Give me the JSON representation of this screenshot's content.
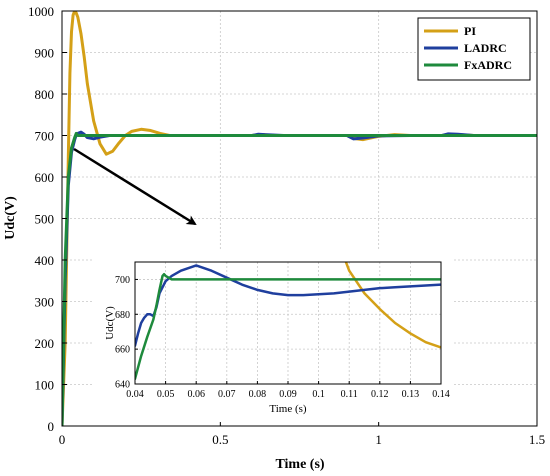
{
  "chart_data": [
    {
      "type": "line",
      "xlabel": "Time (s)",
      "ylabel": "Udc(V)",
      "xlim": [
        0,
        1.5
      ],
      "ylim": [
        0,
        1000
      ],
      "xticks": [
        0,
        0.5,
        1,
        1.5
      ],
      "xtick_labels": [
        "0",
        "0.5",
        "1",
        "1.5"
      ],
      "yticks": [
        0,
        100,
        200,
        300,
        400,
        500,
        600,
        700,
        800,
        900,
        1000
      ],
      "ytick_labels": [
        "0",
        "100",
        "200",
        "300",
        "400",
        "500",
        "600",
        "700",
        "800",
        "900",
        "1000"
      ],
      "grid": true,
      "legend_position": "top-right",
      "series": [
        {
          "name": "PI",
          "color": "#D4A017",
          "x": [
            0,
            0.01,
            0.02,
            0.025,
            0.03,
            0.035,
            0.04,
            0.045,
            0.05,
            0.06,
            0.07,
            0.08,
            0.1,
            0.12,
            0.14,
            0.16,
            0.18,
            0.2,
            0.22,
            0.25,
            0.28,
            0.31,
            0.34,
            0.38,
            0.42,
            0.5,
            0.6,
            0.62,
            0.64,
            0.66,
            0.7,
            0.85,
            0.9,
            0.92,
            0.95,
            1.0,
            1.05,
            1.1,
            1.2,
            1.22,
            1.25,
            1.3,
            1.4,
            1.5
          ],
          "y": [
            0,
            200,
            650,
            850,
            950,
            990,
            1000,
            995,
            985,
            945,
            890,
            825,
            735,
            680,
            655,
            662,
            682,
            700,
            710,
            715,
            712,
            705,
            700,
            700,
            700,
            700,
            700,
            702,
            702,
            700,
            700,
            700,
            700,
            693,
            690,
            698,
            702,
            700,
            700,
            702,
            702,
            700,
            700,
            700
          ]
        },
        {
          "name": "LADRC",
          "color": "#1F3F9E",
          "x": [
            0,
            0.01,
            0.02,
            0.03,
            0.04,
            0.045,
            0.05,
            0.06,
            0.07,
            0.08,
            0.1,
            0.12,
            0.15,
            0.2,
            0.3,
            0.5,
            0.6,
            0.62,
            0.64,
            0.7,
            0.9,
            0.92,
            0.95,
            1.0,
            1.1,
            1.2,
            1.22,
            1.25,
            1.3,
            1.5
          ],
          "y": [
            0,
            350,
            580,
            660,
            690,
            702,
            705,
            708,
            703,
            695,
            692,
            696,
            700,
            700,
            700,
            700,
            700,
            703,
            702,
            700,
            700,
            692,
            694,
            699,
            700,
            700,
            704,
            703,
            700,
            700
          ]
        },
        {
          "name": "FxADRC",
          "color": "#1E8A3C",
          "x": [
            0,
            0.01,
            0.02,
            0.03,
            0.04,
            0.045,
            0.05,
            0.06,
            0.08,
            0.1,
            0.2,
            0.5,
            1.0,
            1.5
          ],
          "y": [
            0,
            400,
            600,
            670,
            695,
            705,
            700,
            700,
            700,
            700,
            700,
            700,
            700,
            700
          ]
        }
      ]
    },
    {
      "type": "line",
      "xlabel": "Time (s)",
      "ylabel": "Udc(V)",
      "xlim": [
        0.04,
        0.14
      ],
      "ylim": [
        640,
        710
      ],
      "xticks": [
        0.04,
        0.05,
        0.06,
        0.07,
        0.08,
        0.09,
        0.1,
        0.11,
        0.12,
        0.13,
        0.14
      ],
      "xtick_labels": [
        "0.04",
        "0.05",
        "0.06",
        "0.07",
        "0.08",
        "0.09",
        "0.1",
        "0.11",
        "0.12",
        "0.13",
        "0.14"
      ],
      "yticks": [
        640,
        660,
        680,
        700
      ],
      "ytick_labels": [
        "640",
        "660",
        "680",
        "700"
      ],
      "grid": true,
      "series": [
        {
          "color": "#D4A017",
          "x": [
            0.1085,
            0.11,
            0.115,
            0.12,
            0.125,
            0.13,
            0.135,
            0.14
          ],
          "y": [
            712,
            705,
            692,
            683,
            675,
            669,
            664,
            661
          ]
        },
        {
          "color": "#1F3F9E",
          "x": [
            0.04,
            0.041,
            0.042,
            0.043,
            0.044,
            0.045,
            0.046,
            0.047,
            0.048,
            0.05,
            0.052,
            0.055,
            0.06,
            0.065,
            0.07,
            0.075,
            0.08,
            0.085,
            0.09,
            0.095,
            0.1,
            0.105,
            0.11,
            0.115,
            0.12,
            0.125,
            0.13,
            0.135,
            0.14
          ],
          "y": [
            662,
            669,
            675,
            678,
            680,
            680,
            679,
            684,
            692,
            699,
            702,
            705,
            708,
            705,
            701,
            697,
            694,
            692,
            691,
            691,
            691.5,
            692,
            693,
            694,
            695,
            695.5,
            696,
            696.5,
            697
          ]
        },
        {
          "color": "#1E8A3C",
          "x": [
            0.04,
            0.042,
            0.044,
            0.046,
            0.047,
            0.048,
            0.049,
            0.0495,
            0.05,
            0.052,
            0.06,
            0.08,
            0.1,
            0.12,
            0.14
          ],
          "y": [
            643,
            656,
            667,
            677,
            685,
            694,
            702,
            703,
            702,
            700,
            700,
            700,
            700,
            700,
            700
          ]
        }
      ]
    }
  ]
}
